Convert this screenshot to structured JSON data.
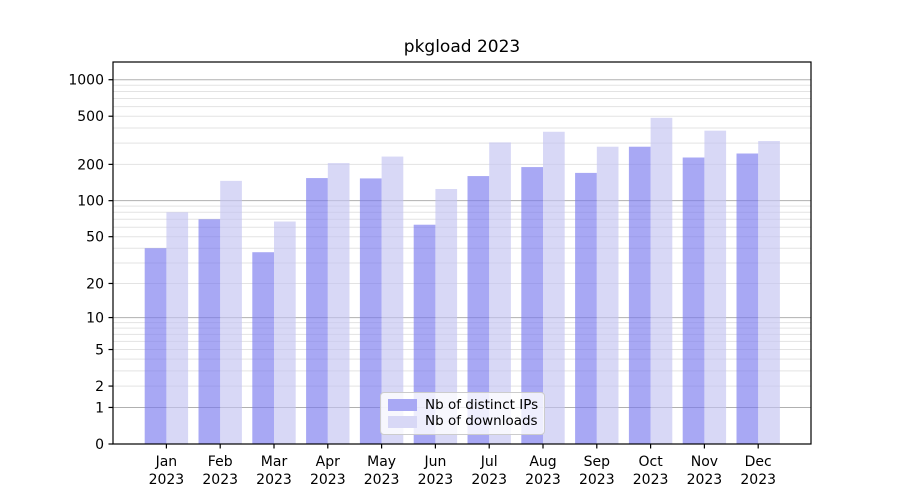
{
  "chart_data": {
    "type": "bar",
    "title": "pkgload 2023",
    "xlabel": "",
    "ylabel": "",
    "categories": [
      "Jan",
      "Feb",
      "Mar",
      "Apr",
      "May",
      "Jun",
      "Jul",
      "Aug",
      "Sep",
      "Oct",
      "Nov",
      "Dec"
    ],
    "x_year_label": "2023",
    "series": [
      {
        "name": "Nb of distinct IPs",
        "color": "#a8a8f4",
        "values": [
          40,
          70,
          37,
          154,
          153,
          63,
          160,
          190,
          170,
          280,
          228,
          246
        ]
      },
      {
        "name": "Nb of downloads",
        "color": "#d8d8f6",
        "values": [
          80,
          146,
          67,
          205,
          232,
          125,
          304,
          372,
          280,
          485,
          380,
          312
        ]
      }
    ],
    "yscale": "log1p",
    "yticks": [
      0,
      1,
      2,
      5,
      10,
      20,
      50,
      100,
      200,
      500,
      1000
    ],
    "ylim": [
      0,
      1400
    ],
    "grid": true,
    "grid_major_color": "#b0b0b0",
    "grid_minor_color": "#e3e3e3",
    "legend_position": "lower center"
  }
}
